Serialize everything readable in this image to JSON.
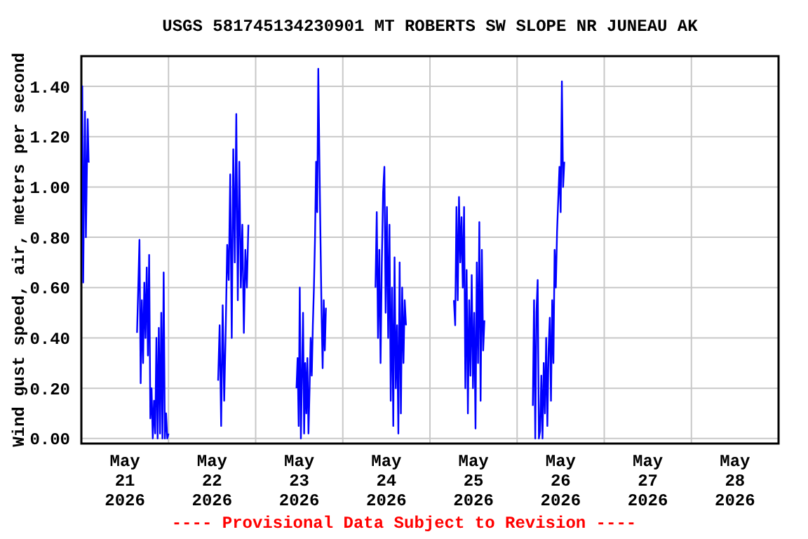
{
  "chart_data": {
    "type": "line",
    "title": "USGS 581745134230901 MT ROBERTS SW SLOPE NR JUNEAU AK",
    "ylabel": "Wind gust speed, air, meters per second",
    "annotations": [
      "---- Provisional Data Subject to Revision ----"
    ],
    "x": [
      "2026-05-21T00:00",
      "2026-05-21T00:15",
      "2026-05-21T00:30",
      "2026-05-21T00:45",
      "2026-05-21T01:00",
      "2026-05-21T01:15",
      "2026-05-21T01:30",
      "2026-05-21T01:45",
      "2026-05-21T02:00",
      "2026-05-21T02:15",
      "2026-05-21T09:00",
      "2026-05-21T15:20",
      "2026-05-21T15:40",
      "2026-05-21T16:00",
      "2026-05-21T16:20",
      "2026-05-21T16:40",
      "2026-05-21T17:00",
      "2026-05-21T17:20",
      "2026-05-21T17:40",
      "2026-05-21T18:00",
      "2026-05-21T18:20",
      "2026-05-21T18:40",
      "2026-05-21T19:00",
      "2026-05-21T19:20",
      "2026-05-21T19:40",
      "2026-05-21T20:00",
      "2026-05-21T20:20",
      "2026-05-21T20:40",
      "2026-05-21T21:00",
      "2026-05-21T21:20",
      "2026-05-21T21:40",
      "2026-05-21T22:00",
      "2026-05-21T22:20",
      "2026-05-21T22:40",
      "2026-05-21T23:00",
      "2026-05-21T23:20",
      "2026-05-21T23:40",
      "2026-05-22T00:00",
      "2026-05-22T06:00",
      "2026-05-22T13:40",
      "2026-05-22T14:05",
      "2026-05-22T14:30",
      "2026-05-22T14:55",
      "2026-05-22T15:20",
      "2026-05-22T15:45",
      "2026-05-22T16:10",
      "2026-05-22T16:35",
      "2026-05-22T17:00",
      "2026-05-22T17:25",
      "2026-05-22T17:50",
      "2026-05-22T18:15",
      "2026-05-22T18:40",
      "2026-05-22T19:05",
      "2026-05-22T19:30",
      "2026-05-22T19:55",
      "2026-05-22T20:20",
      "2026-05-22T20:45",
      "2026-05-22T21:10",
      "2026-05-22T21:35",
      "2026-05-22T22:00",
      "2026-05-23T04:00",
      "2026-05-23T11:15",
      "2026-05-23T11:33",
      "2026-05-23T11:51",
      "2026-05-23T12:09",
      "2026-05-23T12:27",
      "2026-05-23T12:45",
      "2026-05-23T13:03",
      "2026-05-23T13:21",
      "2026-05-23T13:39",
      "2026-05-23T13:57",
      "2026-05-23T14:15",
      "2026-05-23T14:33",
      "2026-05-23T14:51",
      "2026-05-23T15:09",
      "2026-05-23T15:27",
      "2026-05-23T15:45",
      "2026-05-23T16:03",
      "2026-05-23T16:21",
      "2026-05-23T16:39",
      "2026-05-23T16:57",
      "2026-05-23T17:15",
      "2026-05-23T17:33",
      "2026-05-23T17:51",
      "2026-05-23T18:09",
      "2026-05-23T18:27",
      "2026-05-23T18:45",
      "2026-05-23T19:03",
      "2026-05-23T19:21",
      "2026-05-24T02:00",
      "2026-05-24T09:00",
      "2026-05-24T09:21",
      "2026-05-24T09:42",
      "2026-05-24T10:03",
      "2026-05-24T10:24",
      "2026-05-24T10:45",
      "2026-05-24T11:06",
      "2026-05-24T11:27",
      "2026-05-24T11:48",
      "2026-05-24T12:09",
      "2026-05-24T12:30",
      "2026-05-24T12:51",
      "2026-05-24T13:12",
      "2026-05-24T13:33",
      "2026-05-24T13:54",
      "2026-05-24T14:15",
      "2026-05-24T14:36",
      "2026-05-24T14:57",
      "2026-05-24T15:18",
      "2026-05-24T15:39",
      "2026-05-24T16:00",
      "2026-05-24T16:21",
      "2026-05-24T16:42",
      "2026-05-24T17:03",
      "2026-05-24T17:24",
      "2026-05-25T00:00",
      "2026-05-25T06:36",
      "2026-05-25T06:57",
      "2026-05-25T07:18",
      "2026-05-25T07:39",
      "2026-05-25T08:00",
      "2026-05-25T08:21",
      "2026-05-25T08:42",
      "2026-05-25T09:03",
      "2026-05-25T09:24",
      "2026-05-25T09:45",
      "2026-05-25T10:06",
      "2026-05-25T10:27",
      "2026-05-25T10:48",
      "2026-05-25T11:09",
      "2026-05-25T11:30",
      "2026-05-25T11:51",
      "2026-05-25T12:12",
      "2026-05-25T12:33",
      "2026-05-25T12:54",
      "2026-05-25T13:15",
      "2026-05-25T13:36",
      "2026-05-25T13:57",
      "2026-05-25T14:18",
      "2026-05-25T14:39",
      "2026-05-25T15:00",
      "2026-05-25T22:00",
      "2026-05-26T04:20",
      "2026-05-26T04:40",
      "2026-05-26T05:00",
      "2026-05-26T05:20",
      "2026-05-26T05:40",
      "2026-05-26T06:00",
      "2026-05-26T06:20",
      "2026-05-26T06:40",
      "2026-05-26T07:00",
      "2026-05-26T07:20",
      "2026-05-26T07:40",
      "2026-05-26T08:00",
      "2026-05-26T08:20",
      "2026-05-26T08:40",
      "2026-05-26T09:00",
      "2026-05-26T09:20",
      "2026-05-26T09:40",
      "2026-05-26T10:00",
      "2026-05-26T10:20",
      "2026-05-26T10:40",
      "2026-05-26T11:00",
      "2026-05-26T11:20",
      "2026-05-26T11:40",
      "2026-05-26T12:00",
      "2026-05-26T12:20",
      "2026-05-26T12:40",
      "2026-05-26T13:00"
    ],
    "series": [
      {
        "color": "#0000ff",
        "values": [
          1.1,
          1.4,
          0.62,
          1.0,
          1.3,
          0.8,
          1.05,
          1.27,
          1.1,
          1.1,
          null,
          0.42,
          0.6,
          0.79,
          0.22,
          0.55,
          0.3,
          0.62,
          0.4,
          0.68,
          0.33,
          0.73,
          0.08,
          0.2,
          0.0,
          0.15,
          0.02,
          0.4,
          0.0,
          0.44,
          0.02,
          0.5,
          0.0,
          0.66,
          0.0,
          0.1,
          0.0,
          0.02,
          null,
          0.23,
          0.45,
          0.05,
          0.53,
          0.15,
          0.43,
          0.77,
          0.63,
          1.05,
          0.4,
          1.15,
          0.7,
          1.29,
          0.55,
          1.1,
          0.6,
          0.85,
          0.42,
          0.75,
          0.6,
          0.85,
          null,
          0.2,
          0.32,
          0.05,
          0.6,
          0.0,
          0.25,
          0.5,
          0.02,
          0.3,
          0.1,
          0.32,
          0.02,
          0.2,
          0.4,
          0.25,
          0.45,
          0.6,
          0.8,
          1.1,
          0.9,
          1.47,
          1.12,
          0.8,
          0.5,
          0.28,
          0.55,
          0.35,
          0.52,
          null,
          0.6,
          0.9,
          0.4,
          0.75,
          0.3,
          0.7,
          0.98,
          1.08,
          0.5,
          0.92,
          0.4,
          0.85,
          0.15,
          0.6,
          0.05,
          0.72,
          0.2,
          0.45,
          0.02,
          0.7,
          0.1,
          0.6,
          0.3,
          0.55,
          0.45,
          null,
          0.55,
          0.45,
          0.92,
          0.55,
          0.96,
          0.7,
          0.88,
          0.6,
          0.92,
          0.2,
          0.67,
          0.1,
          0.55,
          0.25,
          0.65,
          0.2,
          0.5,
          0.04,
          0.7,
          0.3,
          0.86,
          0.15,
          0.75,
          0.35,
          0.47,
          null,
          0.13,
          0.55,
          0.0,
          0.5,
          0.63,
          0.0,
          0.03,
          0.25,
          0.0,
          0.3,
          0.1,
          0.4,
          0.05,
          0.35,
          0.48,
          0.15,
          0.55,
          0.3,
          0.75,
          0.6,
          0.82,
          0.95,
          1.08,
          0.9,
          1.42,
          1.0,
          1.1
        ]
      }
    ],
    "xlim": [
      "2026-05-21T00:00",
      "2026-05-29T00:00"
    ],
    "xticks": [
      {
        "value": "2026-05-21T00:00",
        "label": null
      },
      {
        "value": "2026-05-21T12:00",
        "label": "May\n21\n2026"
      },
      {
        "value": "2026-05-22T00:00",
        "label": null
      },
      {
        "value": "2026-05-22T12:00",
        "label": "May\n22\n2026"
      },
      {
        "value": "2026-05-23T00:00",
        "label": null
      },
      {
        "value": "2026-05-23T12:00",
        "label": "May\n23\n2026"
      },
      {
        "value": "2026-05-24T00:00",
        "label": null
      },
      {
        "value": "2026-05-24T12:00",
        "label": "May\n24\n2026"
      },
      {
        "value": "2026-05-25T00:00",
        "label": null
      },
      {
        "value": "2026-05-25T12:00",
        "label": "May\n25\n2026"
      },
      {
        "value": "2026-05-26T00:00",
        "label": null
      },
      {
        "value": "2026-05-26T12:00",
        "label": "May\n26\n2026"
      },
      {
        "value": "2026-05-27T00:00",
        "label": null
      },
      {
        "value": "2026-05-27T12:00",
        "label": "May\n27\n2026"
      },
      {
        "value": "2026-05-28T00:00",
        "label": null
      },
      {
        "value": "2026-05-28T12:00",
        "label": "May\n28\n2026"
      },
      {
        "value": "2026-05-29T00:00",
        "label": null
      }
    ],
    "ylim": [
      -0.02,
      1.52
    ],
    "yticks": [
      {
        "value": 0,
        "label": "0.00"
      },
      {
        "value": 0.2,
        "label": "0.20"
      },
      {
        "value": 0.4,
        "label": "0.40"
      },
      {
        "value": 0.6,
        "label": "0.60"
      },
      {
        "value": 0.8,
        "label": "0.80"
      },
      {
        "value": 1.0,
        "label": "1.00"
      },
      {
        "value": 1.2,
        "label": "1.20"
      },
      {
        "value": 1.4,
        "label": "1.40"
      }
    ],
    "grid": true,
    "marker": "none",
    "line_style": "solid"
  }
}
